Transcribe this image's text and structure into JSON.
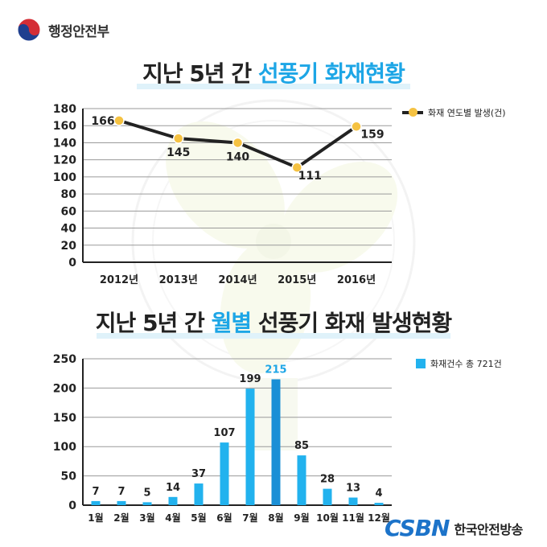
{
  "header": {
    "ministry": "행정안전부"
  },
  "titles": {
    "chart1": {
      "prefix": "지난 5년 간 ",
      "highlight": "선풍기 화재현황",
      "suffix": ""
    },
    "chart2": {
      "prefix": "지난 5년 간 ",
      "highlight": "월별",
      "suffix": " 선풍기 화재 발생현황"
    }
  },
  "colors": {
    "accent": "#1da6e6",
    "line": "#222222",
    "marker": "#f5c242",
    "bar": "#22b2ee",
    "bar_peak": "#1a8fd6"
  },
  "chart_data": [
    {
      "type": "line",
      "title": "지난 5년 간 선풍기 화재현황",
      "x": [
        "2012년",
        "2013년",
        "2014년",
        "2015년",
        "2016년"
      ],
      "series": [
        {
          "name": "화재 연도별 발생(건)",
          "values": [
            166,
            145,
            140,
            111,
            159
          ]
        }
      ],
      "ylim": [
        0,
        180
      ],
      "yticks": [
        0,
        20,
        40,
        60,
        80,
        100,
        120,
        140,
        160,
        180
      ],
      "grid": true,
      "legend": "top-right"
    },
    {
      "type": "bar",
      "title": "지난 5년 간 월별 선풍기 화재 발생현황",
      "categories": [
        "1월",
        "2월",
        "3월",
        "4월",
        "5월",
        "6월",
        "7월",
        "8월",
        "9월",
        "10월",
        "11월",
        "12월"
      ],
      "series": [
        {
          "name": "화재건수 총 721건",
          "values": [
            7,
            7,
            5,
            14,
            37,
            107,
            199,
            215,
            85,
            28,
            13,
            4
          ]
        }
      ],
      "ylim": [
        0,
        250
      ],
      "yticks": [
        0,
        50,
        100,
        150,
        200,
        250
      ],
      "grid": true,
      "legend": "top-right",
      "highlight_category": "8월"
    }
  ],
  "footer": {
    "broadcaster_logo": "CSBN",
    "broadcaster_name": "한국안전방송"
  }
}
